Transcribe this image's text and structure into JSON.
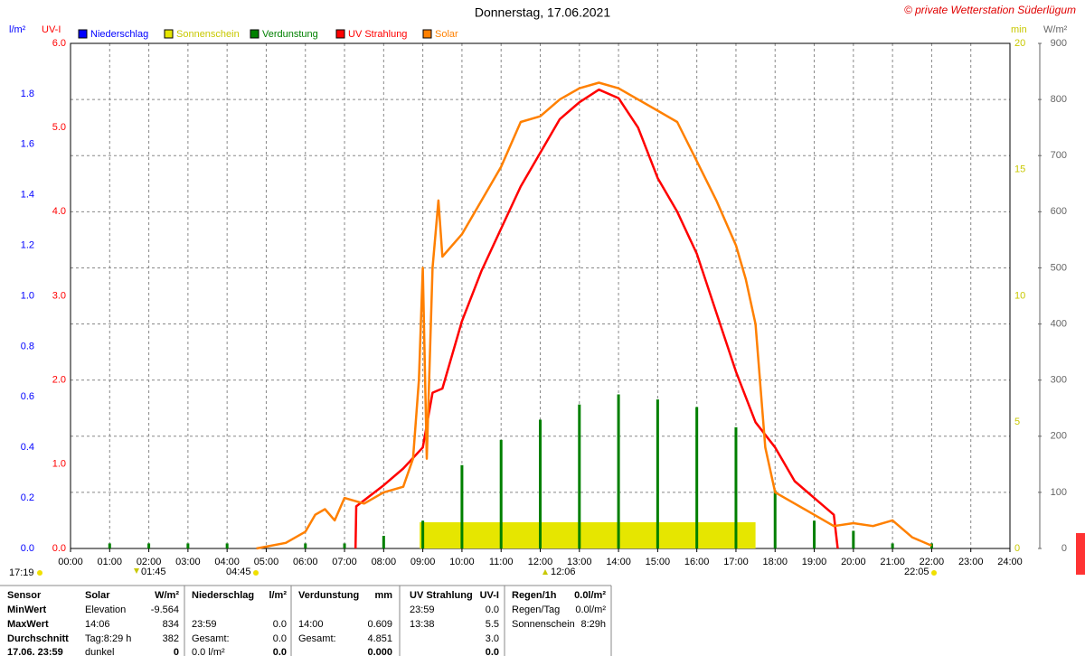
{
  "chart_data": {
    "type": "line",
    "title": "Donnerstag, 17.06.2021",
    "credit": "© private Wetterstation Süderlügum",
    "axis_units": {
      "lm": "l/m²",
      "uv": "UV-I",
      "min": "min",
      "wm": "W/m²"
    },
    "xlim": [
      0,
      24
    ],
    "xticks": [
      {
        "value": 0,
        "label": "00:00"
      },
      {
        "value": 1,
        "label": "01:00"
      },
      {
        "value": 2,
        "label": "02:00"
      },
      {
        "value": 3,
        "label": "03:00"
      },
      {
        "value": 4,
        "label": "04:00"
      },
      {
        "value": 5,
        "label": "05:00"
      },
      {
        "value": 6,
        "label": "06:00"
      },
      {
        "value": 7,
        "label": "07:00"
      },
      {
        "value": 8,
        "label": "08:00"
      },
      {
        "value": 9,
        "label": "09:00"
      },
      {
        "value": 10,
        "label": "10:00"
      },
      {
        "value": 11,
        "label": "11:00"
      },
      {
        "value": 12,
        "label": "12:00"
      },
      {
        "value": 13,
        "label": "13:00"
      },
      {
        "value": 14,
        "label": "14:00"
      },
      {
        "value": 15,
        "label": "15:00"
      },
      {
        "value": 16,
        "label": "16:00"
      },
      {
        "value": 17,
        "label": "17:00"
      },
      {
        "value": 18,
        "label": "18:00"
      },
      {
        "value": 19,
        "label": "19:00"
      },
      {
        "value": 20,
        "label": "20:00"
      },
      {
        "value": 21,
        "label": "21:00"
      },
      {
        "value": 22,
        "label": "22:00"
      },
      {
        "value": 23,
        "label": "23:00"
      },
      {
        "value": 24,
        "label": "24:00"
      }
    ],
    "ylim": [
      0,
      2.0
    ],
    "yticks": [
      {
        "value": 0,
        "label": "0.0"
      },
      0.2,
      0.4,
      0.6,
      0.8,
      {
        "value": 1,
        "label": "1.0"
      },
      1.2,
      1.4,
      1.6,
      1.8
    ],
    "uv_lim": [
      0,
      6
    ],
    "uv_ticks": [
      {
        "value": 0,
        "label": "0.0"
      },
      {
        "value": 1,
        "label": "1.0"
      },
      {
        "value": 2,
        "label": "2.0"
      },
      {
        "value": 3,
        "label": "3.0"
      },
      {
        "value": 4,
        "label": "4.0"
      },
      {
        "value": 5,
        "label": "5.0"
      },
      {
        "value": 6,
        "label": "6.0"
      }
    ],
    "min_lim": [
      0,
      20
    ],
    "min_ticks": [
      0,
      5,
      10,
      15,
      20
    ],
    "y2lim": [
      0,
      900
    ],
    "y2ticks": [
      0,
      100,
      200,
      300,
      400,
      500,
      600,
      700,
      800,
      900
    ],
    "grid": true,
    "events": [
      "17:19",
      "01:45",
      "04:45",
      "12:06",
      "22:05"
    ],
    "series": [
      {
        "name": "Niederschlag",
        "color": "#0000ff",
        "axis": "y"
      },
      {
        "name": "Sonnenschein",
        "color": "#e6e600",
        "axis": "min",
        "start": 8.92,
        "end": 17.5,
        "value": 1.04
      },
      {
        "name": "Verdunstung",
        "color": "#008000",
        "axis": "y",
        "x": [
          1,
          2,
          3,
          4,
          6,
          7,
          8,
          9,
          10,
          11,
          12,
          13,
          14,
          15,
          16,
          17,
          18,
          19,
          20,
          21,
          22
        ],
        "values": [
          0.02,
          0.02,
          0.02,
          0.02,
          0.02,
          0.02,
          0.05,
          0.11,
          0.33,
          0.43,
          0.51,
          0.57,
          0.61,
          0.59,
          0.56,
          0.48,
          0.23,
          0.11,
          0.07,
          0.02,
          0.02
        ]
      },
      {
        "name": "UV Strahlung",
        "color": "#ff0000",
        "axis": "uv",
        "x": [
          7.28,
          7.3,
          8,
          8.5,
          9,
          9.25,
          9.5,
          10,
          10.5,
          11,
          11.5,
          12,
          12.5,
          13,
          13.5,
          14,
          14.5,
          15,
          15.5,
          16,
          16.5,
          17,
          17.5,
          18,
          18.5,
          19,
          19.5,
          19.6
        ],
        "values": [
          0,
          0.5,
          0.75,
          0.95,
          1.2,
          1.85,
          1.9,
          2.7,
          3.3,
          3.8,
          4.3,
          4.7,
          5.1,
          5.3,
          5.45,
          5.35,
          5.0,
          4.4,
          4.0,
          3.5,
          2.8,
          2.1,
          1.5,
          1.2,
          0.8,
          0.6,
          0.4,
          0
        ]
      },
      {
        "name": "Solar",
        "color": "#ff8000",
        "axis": "y2",
        "x": [
          4.75,
          5.5,
          6,
          6.25,
          6.5,
          6.75,
          7,
          7.5,
          8,
          8.5,
          8.75,
          8.9,
          9,
          9.1,
          9.25,
          9.4,
          9.5,
          10,
          10.5,
          11,
          11.5,
          12,
          12.5,
          13,
          13.5,
          14,
          14.5,
          15,
          15.5,
          16,
          16.5,
          17,
          17.25,
          17.5,
          17.75,
          18,
          18.5,
          19,
          19.5,
          20,
          20.5,
          21,
          21.5,
          22
        ],
        "values": [
          0,
          10,
          30,
          60,
          70,
          50,
          90,
          80,
          100,
          110,
          160,
          300,
          500,
          160,
          500,
          620,
          520,
          560,
          620,
          680,
          760,
          770,
          800,
          820,
          830,
          820,
          800,
          780,
          760,
          690,
          620,
          540,
          480,
          400,
          180,
          100,
          80,
          60,
          40,
          45,
          40,
          50,
          20,
          5
        ]
      }
    ]
  },
  "stats": {
    "header": [
      "Sensor",
      "Solar",
      "W/m²",
      "Niederschlag",
      "l/m²",
      "Verdunstung",
      "mm",
      "UV Strahlung",
      "UV-I",
      "Regen/1h",
      "0.0l/m²"
    ],
    "rows": [
      [
        "MinWert",
        "Elevation",
        "-9.564",
        null,
        null,
        null,
        null,
        "23:59",
        "0.0",
        "Regen/Tag",
        "0.0l/m²"
      ],
      [
        "MaxWert",
        "14:06",
        "834",
        "23:59",
        "0.0",
        "14:00",
        "0.609",
        "13:38",
        "5.5",
        "Sonnenschein",
        "8:29h"
      ],
      [
        "Durchschnitt",
        "Tag:8:29 h",
        "382",
        "Gesamt:",
        "0.0",
        "Gesamt:",
        "4.851",
        null,
        "3.0",
        null,
        null
      ],
      [
        "17.06. 23:59",
        "dunkel",
        "0",
        "0.0 l/m²",
        "0.0",
        null,
        "0.000",
        null,
        "0.0",
        null,
        null
      ]
    ]
  }
}
